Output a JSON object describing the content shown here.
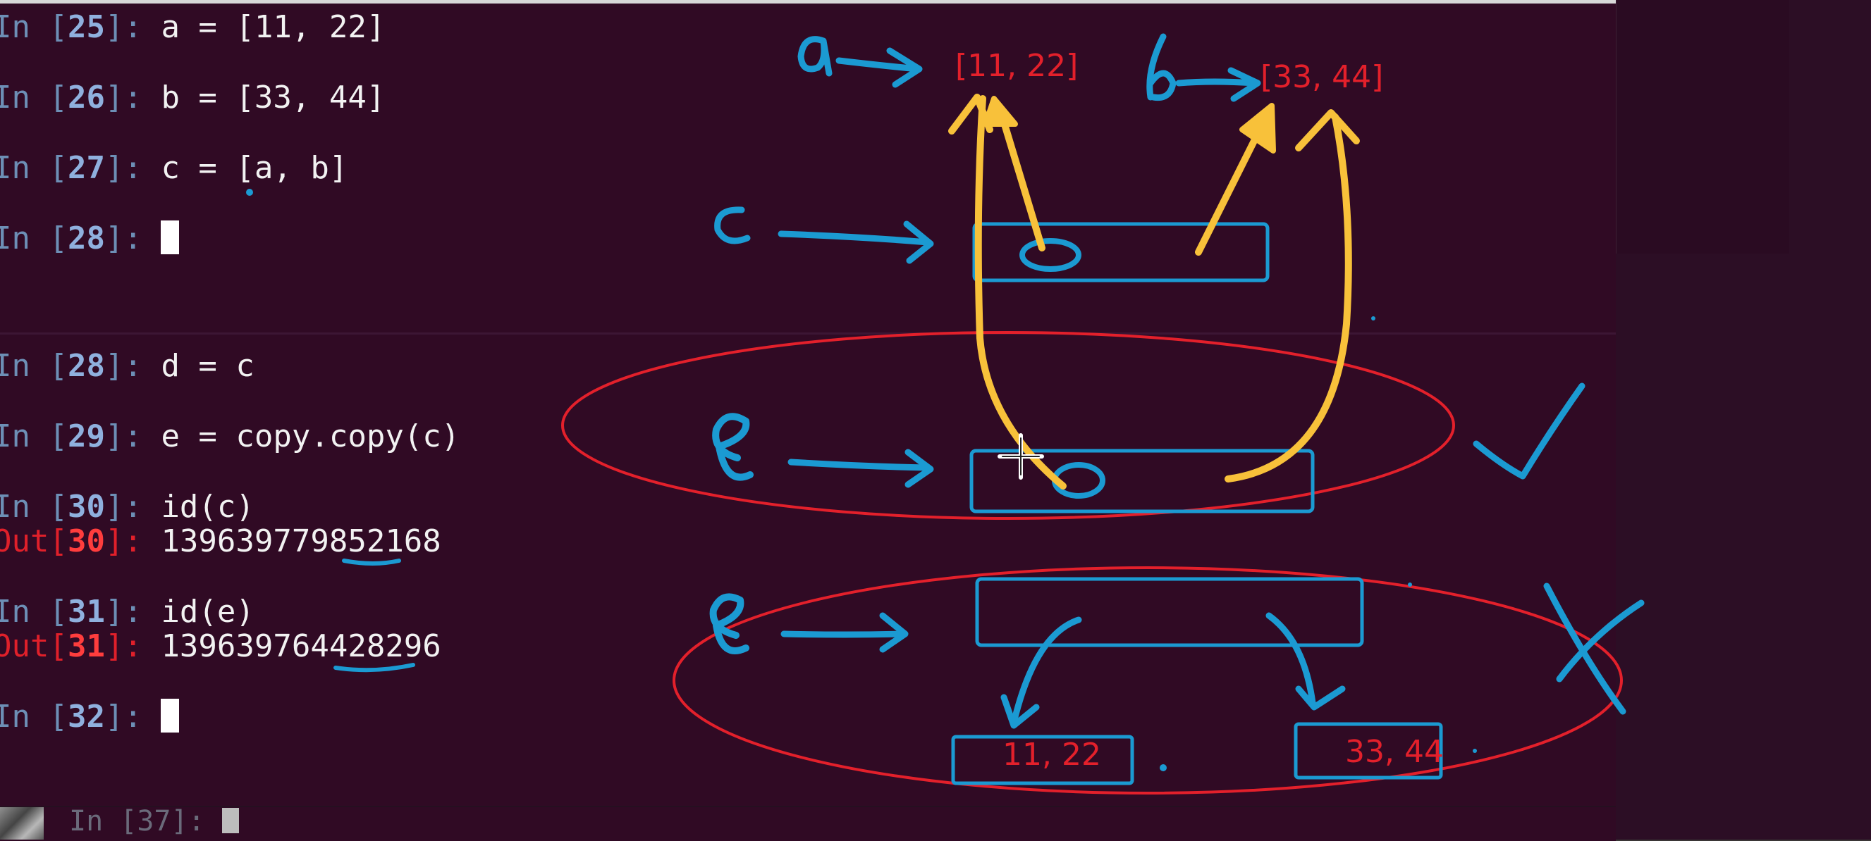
{
  "top_cells": [
    {
      "prompt_prefix": "In [",
      "num": "25",
      "prompt_suffix": "]: ",
      "code": "a = [11, 22]"
    },
    {
      "prompt_prefix": "In [",
      "num": "26",
      "prompt_suffix": "]: ",
      "code": "b = [33, 44]"
    },
    {
      "prompt_prefix": "In [",
      "num": "27",
      "prompt_suffix": "]: ",
      "code": "c = [a, b]"
    },
    {
      "prompt_prefix": "In [",
      "num": "28",
      "prompt_suffix": "]: ",
      "code": ""
    }
  ],
  "bottom_cells": [
    {
      "prompt_prefix": "In [",
      "num": "28",
      "prompt_suffix": "]: ",
      "code": "d = c"
    },
    {
      "prompt_prefix": "In [",
      "num": "29",
      "prompt_suffix": "]: ",
      "code": "e = copy.copy(c)"
    },
    {
      "prompt_prefix": "In [",
      "num": "30",
      "prompt_suffix": "]: ",
      "code": "id(c)"
    },
    {
      "prompt_prefix": "Out[",
      "num": "30",
      "prompt_suffix": "]: ",
      "code": "139639779852168"
    },
    {
      "prompt_prefix": "In [",
      "num": "31",
      "prompt_suffix": "]: ",
      "code": "id(e)"
    },
    {
      "prompt_prefix": "Out[",
      "num": "31",
      "prompt_suffix": "]: ",
      "code": "139639764428296"
    },
    {
      "prompt_prefix": "In [",
      "num": "32",
      "prompt_suffix": "]: ",
      "code": ""
    }
  ],
  "third_terminal": {
    "prompt_prefix": "In [",
    "num": "37",
    "prompt_suffix": "]: "
  },
  "annotations": {
    "list_a": "[11, 22]",
    "list_b": "[33, 44]",
    "wrong_box_a": "11, 22",
    "wrong_box_b": "33, 44"
  },
  "colors": {
    "terminal_bg": "#300a24",
    "prompt_in": "#6d8fb6",
    "prompt_out": "#e0202a",
    "ink_blue": "#1b9ad2",
    "ink_yellow": "#f8c13a",
    "ink_red": "#e3202b"
  }
}
